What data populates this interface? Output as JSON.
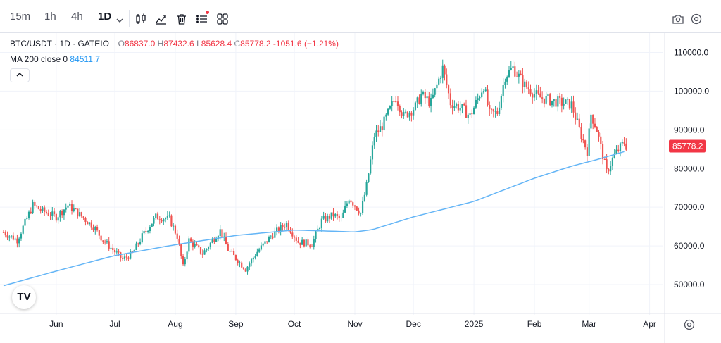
{
  "toolbar": {
    "timeframes": [
      {
        "label": "15m",
        "active": false
      },
      {
        "label": "1h",
        "active": false
      },
      {
        "label": "4h",
        "active": false
      },
      {
        "label": "1D",
        "active": true
      }
    ],
    "tools": [
      "candle-style-icon",
      "indicators-icon",
      "delete-icon",
      "watchlist-icon",
      "layout-grid-icon"
    ],
    "right_tools": [
      "camera-icon",
      "settings-icon"
    ]
  },
  "legend": {
    "symbol": "BTC/USDT · 1D · GATEIO",
    "open_label": "O",
    "open": "86837.0",
    "high_label": "H",
    "high": "87432.6",
    "low_label": "L",
    "low": "85628.4",
    "close_label": "C",
    "close": "85778.2",
    "change": "-1051.6 (−1.21%)",
    "ma_label": "MA 200 close 0",
    "ma_value": "84511.7"
  },
  "colors": {
    "up": "#26a69a",
    "down": "#ef5350",
    "ma": "#64b5f6",
    "price_line": "#f23645",
    "grid": "#f0f3fa",
    "axis_text": "#131722"
  },
  "logo_text": "TV",
  "chart_data": {
    "type": "candlestick",
    "title": "BTC/USDT · 1D · GATEIO",
    "current_price": 85778.2,
    "current_price_label": "85778.2",
    "y_ticks": [
      50000,
      60000,
      70000,
      80000,
      90000,
      100000,
      110000
    ],
    "y_tick_labels": [
      "50000.0",
      "60000.0",
      "70000.0",
      "80000.0",
      "90000.0",
      "100000.0",
      "110000.0"
    ],
    "ylim": [
      44000,
      115000
    ],
    "x_ticks": [
      {
        "label": "Jun",
        "date": "2024-06-01"
      },
      {
        "label": "Jul",
        "date": "2024-07-01"
      },
      {
        "label": "Aug",
        "date": "2024-08-01"
      },
      {
        "label": "Sep",
        "date": "2024-09-01"
      },
      {
        "label": "Oct",
        "date": "2024-10-01"
      },
      {
        "label": "Nov",
        "date": "2024-11-01"
      },
      {
        "label": "Dec",
        "date": "2024-12-01"
      },
      {
        "label": "2025",
        "date": "2025-01-01"
      },
      {
        "label": "Feb",
        "date": "2025-02-01"
      },
      {
        "label": "Mar",
        "date": "2025-03-01"
      },
      {
        "label": "Apr",
        "date": "2025-04-01"
      }
    ],
    "xlim": [
      "2024-05-05",
      "2025-04-08"
    ],
    "grid": true,
    "price_anchors": [
      [
        "2024-05-05",
        63500
      ],
      [
        "2024-05-12",
        61500
      ],
      [
        "2024-05-20",
        70500
      ],
      [
        "2024-05-25",
        69000
      ],
      [
        "2024-06-01",
        67500
      ],
      [
        "2024-06-07",
        70500
      ],
      [
        "2024-06-12",
        68500
      ],
      [
        "2024-06-20",
        65000
      ],
      [
        "2024-06-25",
        61500
      ],
      [
        "2024-07-05",
        56500
      ],
      [
        "2024-07-10",
        58000
      ],
      [
        "2024-07-15",
        62500
      ],
      [
        "2024-07-22",
        67500
      ],
      [
        "2024-07-29",
        67000
      ],
      [
        "2024-08-02",
        62500
      ],
      [
        "2024-08-05",
        54500
      ],
      [
        "2024-08-08",
        61500
      ],
      [
        "2024-08-15",
        58000
      ],
      [
        "2024-08-24",
        64000
      ],
      [
        "2024-08-28",
        59000
      ],
      [
        "2024-09-06",
        54000
      ],
      [
        "2024-09-12",
        58500
      ],
      [
        "2024-09-20",
        63000
      ],
      [
        "2024-09-27",
        65800
      ],
      [
        "2024-10-03",
        61000
      ],
      [
        "2024-10-10",
        60500
      ],
      [
        "2024-10-15",
        66500
      ],
      [
        "2024-10-21",
        68000
      ],
      [
        "2024-10-25",
        66800
      ],
      [
        "2024-10-29",
        72500
      ],
      [
        "2024-11-04",
        68500
      ],
      [
        "2024-11-07",
        75500
      ],
      [
        "2024-11-11",
        88500
      ],
      [
        "2024-11-15",
        91000
      ],
      [
        "2024-11-22",
        98500
      ],
      [
        "2024-11-26",
        93500
      ],
      [
        "2024-12-02",
        96000
      ],
      [
        "2024-12-05",
        99000
      ],
      [
        "2024-12-10",
        97000
      ],
      [
        "2024-12-16",
        106000
      ],
      [
        "2024-12-20",
        97000
      ],
      [
        "2024-12-26",
        95500
      ],
      [
        "2024-12-30",
        93500
      ],
      [
        "2025-01-06",
        101500
      ],
      [
        "2025-01-09",
        94000
      ],
      [
        "2025-01-13",
        94500
      ],
      [
        "2025-01-17",
        104000
      ],
      [
        "2025-01-21",
        106000
      ],
      [
        "2025-01-27",
        101500
      ],
      [
        "2025-02-03",
        98500
      ],
      [
        "2025-02-10",
        97500
      ],
      [
        "2025-02-20",
        96500
      ],
      [
        "2025-02-25",
        88500
      ],
      [
        "2025-02-28",
        84500
      ],
      [
        "2025-03-02",
        94000
      ],
      [
        "2025-03-05",
        90000
      ],
      [
        "2025-03-10",
        79000
      ],
      [
        "2025-03-14",
        83500
      ],
      [
        "2025-03-19",
        86800
      ],
      [
        "2025-03-20",
        85778
      ]
    ],
    "ma200": [
      [
        "2024-05-05",
        49700
      ],
      [
        "2024-06-01",
        53500
      ],
      [
        "2024-07-01",
        57500
      ],
      [
        "2024-08-01",
        60300
      ],
      [
        "2024-09-01",
        62700
      ],
      [
        "2024-10-01",
        64100
      ],
      [
        "2024-10-20",
        63800
      ],
      [
        "2024-11-01",
        63600
      ],
      [
        "2024-11-10",
        64200
      ],
      [
        "2024-12-01",
        67500
      ],
      [
        "2025-01-01",
        71500
      ],
      [
        "2025-02-01",
        77500
      ],
      [
        "2025-02-20",
        80600
      ],
      [
        "2025-03-05",
        82300
      ],
      [
        "2025-03-20",
        84500
      ]
    ]
  }
}
